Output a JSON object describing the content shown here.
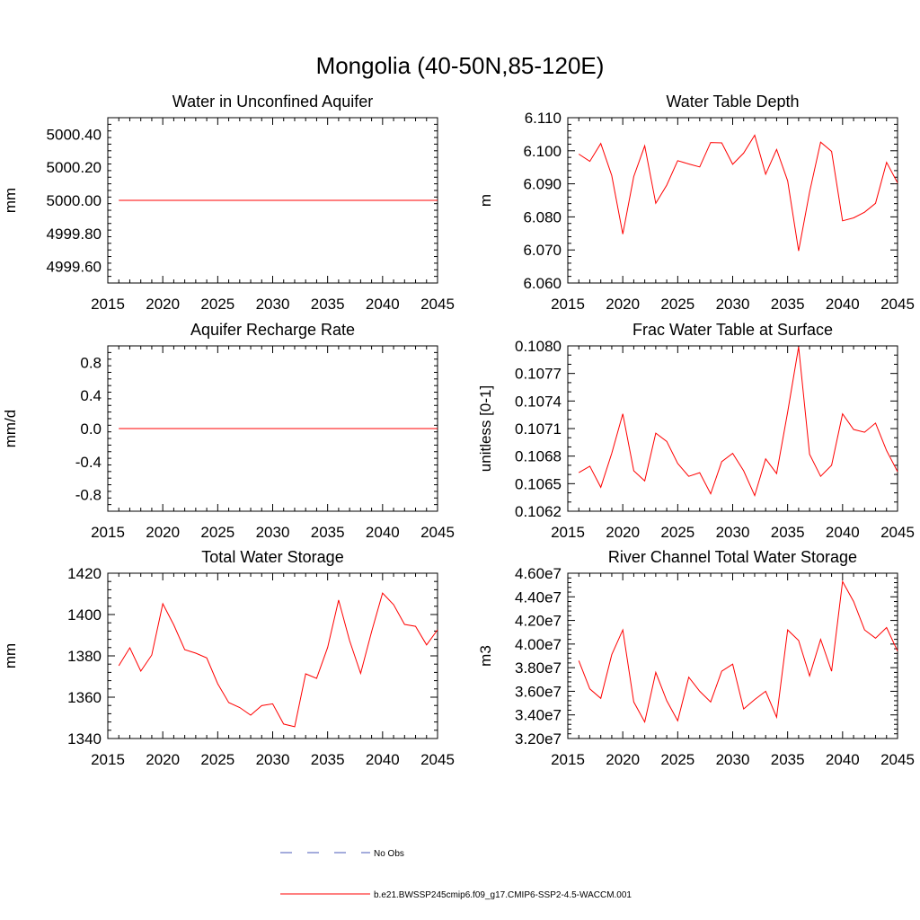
{
  "figure_title": "Mongolia (40-50N,85-120E)",
  "colors": {
    "model": "#ff0000",
    "obs": "#4a5ab8",
    "axis": "#000000"
  },
  "legend": {
    "obs_label": "No Obs",
    "model_label": "b.e21.BWSSP245cmip6.f09_g17.CMIP6-SSP2-4.5-WACCM.001"
  },
  "chart_data": [
    {
      "id": "unconf-aquifer",
      "type": "line",
      "title": "Water in Unconfined Aquifer",
      "ylabel": "mm",
      "xlim": [
        2015,
        2045
      ],
      "ylim": [
        4999.5,
        5000.5
      ],
      "xticks": [
        2015,
        2020,
        2025,
        2030,
        2035,
        2040,
        2045
      ],
      "yticks": [
        4999.6,
        4999.8,
        5000.0,
        5000.2,
        5000.4
      ],
      "ytick_labels": [
        "4999.60",
        "4999.80",
        "5000.00",
        "5000.20",
        "5000.40"
      ],
      "yminor": 5,
      "x": [
        2016,
        2017,
        2018,
        2019,
        2020,
        2021,
        2022,
        2023,
        2024,
        2025,
        2026,
        2027,
        2028,
        2029,
        2030,
        2031,
        2032,
        2033,
        2034,
        2035,
        2036,
        2037,
        2038,
        2039,
        2040,
        2041,
        2042,
        2043,
        2044,
        2045
      ],
      "series": [
        {
          "name": "model",
          "values": [
            5000,
            5000,
            5000,
            5000,
            5000,
            5000,
            5000,
            5000,
            5000,
            5000,
            5000,
            5000,
            5000,
            5000,
            5000,
            5000,
            5000,
            5000,
            5000,
            5000,
            5000,
            5000,
            5000,
            5000,
            5000,
            5000,
            5000,
            5000,
            5000,
            5000
          ]
        }
      ]
    },
    {
      "id": "water-table-depth",
      "type": "line",
      "title": "Water Table Depth",
      "ylabel": "m",
      "xlim": [
        2015,
        2045
      ],
      "ylim": [
        6.06,
        6.11
      ],
      "xticks": [
        2015,
        2020,
        2025,
        2030,
        2035,
        2040,
        2045
      ],
      "yticks": [
        6.06,
        6.07,
        6.08,
        6.09,
        6.1,
        6.11
      ],
      "ytick_labels": [
        "6.060",
        "6.070",
        "6.080",
        "6.090",
        "6.100",
        "6.110"
      ],
      "yminor": 5,
      "x": [
        2016,
        2017,
        2018,
        2019,
        2020,
        2021,
        2022,
        2023,
        2024,
        2025,
        2026,
        2027,
        2028,
        2029,
        2030,
        2031,
        2032,
        2033,
        2034,
        2035,
        2036,
        2037,
        2038,
        2039,
        2040,
        2041,
        2042,
        2043,
        2044,
        2045
      ],
      "series": [
        {
          "name": "model",
          "values": [
            6.099,
            6.0968,
            6.1022,
            6.0925,
            6.0748,
            6.0922,
            6.1015,
            6.0841,
            6.0896,
            6.097,
            6.096,
            6.0951,
            6.1025,
            6.1024,
            6.0959,
            6.0993,
            6.1047,
            6.0929,
            6.1004,
            6.0909,
            6.0697,
            6.0875,
            6.1026,
            6.0998,
            6.0788,
            6.0797,
            6.0814,
            6.0841,
            6.0965,
            6.0903
          ]
        }
      ]
    },
    {
      "id": "recharge-rate",
      "type": "line",
      "title": "Aquifer Recharge Rate",
      "ylabel": "mm/d",
      "xlim": [
        2015,
        2045
      ],
      "ylim": [
        -1.0,
        1.0
      ],
      "xticks": [
        2015,
        2020,
        2025,
        2030,
        2035,
        2040,
        2045
      ],
      "yticks": [
        -0.8,
        -0.4,
        0.0,
        0.4,
        0.8
      ],
      "ytick_labels": [
        "-0.8",
        "-0.4",
        "0.0",
        "0.4",
        "0.8"
      ],
      "yminor": 5,
      "x": [
        2016,
        2017,
        2018,
        2019,
        2020,
        2021,
        2022,
        2023,
        2024,
        2025,
        2026,
        2027,
        2028,
        2029,
        2030,
        2031,
        2032,
        2033,
        2034,
        2035,
        2036,
        2037,
        2038,
        2039,
        2040,
        2041,
        2042,
        2043,
        2044,
        2045
      ],
      "series": [
        {
          "name": "model",
          "values": [
            0,
            0,
            0,
            0,
            0,
            0,
            0,
            0,
            0,
            0,
            0,
            0,
            0,
            0,
            0,
            0,
            0,
            0,
            0,
            0,
            0,
            0,
            0,
            0,
            0,
            0,
            0,
            0,
            0,
            0
          ]
        }
      ]
    },
    {
      "id": "frac-water-table",
      "type": "line",
      "title": "Frac Water Table at Surface",
      "ylabel": "unitless [0-1]",
      "xlim": [
        2015,
        2045
      ],
      "ylim": [
        0.1062,
        0.108
      ],
      "xticks": [
        2015,
        2020,
        2025,
        2030,
        2035,
        2040,
        2045
      ],
      "yticks": [
        0.1062,
        0.1065,
        0.1068,
        0.1071,
        0.1074,
        0.1077,
        0.108
      ],
      "ytick_labels": [
        "0.1062",
        "0.1065",
        "0.1068",
        "0.1071",
        "0.1074",
        "0.1077",
        "0.1080"
      ],
      "yminor": 3,
      "x": [
        2016,
        2017,
        2018,
        2019,
        2020,
        2021,
        2022,
        2023,
        2024,
        2025,
        2026,
        2027,
        2028,
        2029,
        2030,
        2031,
        2032,
        2033,
        2034,
        2035,
        2036,
        2037,
        2038,
        2039,
        2040,
        2041,
        2042,
        2043,
        2044,
        2045
      ],
      "series": [
        {
          "name": "model",
          "values": [
            0.10662,
            0.10669,
            0.10646,
            0.10683,
            0.10726,
            0.10664,
            0.10653,
            0.10705,
            0.10696,
            0.10672,
            0.10658,
            0.10662,
            0.10639,
            0.10674,
            0.10683,
            0.10664,
            0.10637,
            0.10677,
            0.10661,
            0.10728,
            0.10799,
            0.10682,
            0.10658,
            0.1067,
            0.10726,
            0.10709,
            0.10706,
            0.10716,
            0.10686,
            0.10663
          ]
        }
      ]
    },
    {
      "id": "total-water-storage",
      "type": "line",
      "title": "Total Water Storage",
      "ylabel": "mm",
      "xlim": [
        2015,
        2045
      ],
      "ylim": [
        1340,
        1420
      ],
      "xticks": [
        2015,
        2020,
        2025,
        2030,
        2035,
        2040,
        2045
      ],
      "yticks": [
        1340,
        1360,
        1380,
        1400,
        1420
      ],
      "ytick_labels": [
        "1340",
        "1360",
        "1380",
        "1400",
        "1420"
      ],
      "yminor": 5,
      "x": [
        2016,
        2017,
        2018,
        2019,
        2020,
        2021,
        2022,
        2023,
        2024,
        2025,
        2026,
        2027,
        2028,
        2029,
        2030,
        2031,
        2032,
        2033,
        2034,
        2035,
        2036,
        2037,
        2038,
        2039,
        2040,
        2041,
        2042,
        2043,
        2044,
        2045
      ],
      "series": [
        {
          "name": "model",
          "values": [
            1375.2,
            1383.9,
            1372.6,
            1380.4,
            1405.2,
            1395.0,
            1383.0,
            1381.3,
            1379.0,
            1366.5,
            1357.4,
            1355.0,
            1351.3,
            1355.9,
            1356.8,
            1347.0,
            1345.7,
            1371.3,
            1369.1,
            1384.1,
            1407.0,
            1387.4,
            1371.5,
            1391.7,
            1410.4,
            1404.8,
            1395.2,
            1394.3,
            1385.3,
            1392.6
          ]
        }
      ]
    },
    {
      "id": "river-channel-storage",
      "type": "line",
      "title": "River Channel Total Water Storage",
      "ylabel": "m3",
      "xlim": [
        2015,
        2045
      ],
      "ylim": [
        32000000.0,
        46000000.0
      ],
      "xticks": [
        2015,
        2020,
        2025,
        2030,
        2035,
        2040,
        2045
      ],
      "yticks": [
        32000000.0,
        34000000.0,
        36000000.0,
        38000000.0,
        40000000.0,
        42000000.0,
        44000000.0,
        46000000.0
      ],
      "ytick_labels": [
        "3.20e7",
        "3.40e7",
        "3.60e7",
        "3.80e7",
        "4.00e7",
        "4.20e7",
        "4.40e7",
        "4.60e7"
      ],
      "yminor": 5,
      "x": [
        2016,
        2017,
        2018,
        2019,
        2020,
        2021,
        2022,
        2023,
        2024,
        2025,
        2026,
        2027,
        2028,
        2029,
        2030,
        2031,
        2032,
        2033,
        2034,
        2035,
        2036,
        2037,
        2038,
        2039,
        2040,
        2041,
        2042,
        2043,
        2044,
        2045
      ],
      "series": [
        {
          "name": "model",
          "values": [
            38600000.0,
            36200000.0,
            35400000.0,
            39100000.0,
            41200000.0,
            35100000.0,
            33400000.0,
            37600000.0,
            35200000.0,
            33500000.0,
            37200000.0,
            36000000.0,
            35100000.0,
            37700000.0,
            38300000.0,
            34500000.0,
            35300000.0,
            36000000.0,
            33800000.0,
            41200000.0,
            40300000.0,
            37300000.0,
            40400000.0,
            37700000.0,
            45300000.0,
            43600000.0,
            41200000.0,
            40500000.0,
            41400000.0,
            39400000.0
          ]
        }
      ]
    }
  ]
}
